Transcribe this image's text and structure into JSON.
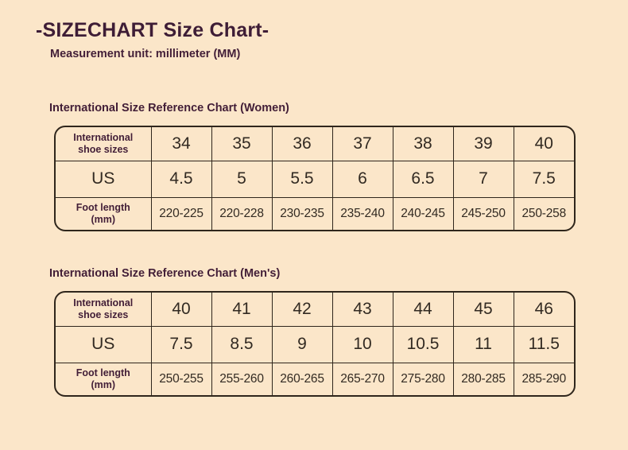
{
  "page": {
    "title": "-SIZECHART Size Chart-",
    "subtitle": "Measurement unit: millimeter (MM)"
  },
  "colors": {
    "background": "#fbe6c9",
    "heading_text": "#421e37",
    "number_text": "#322a22",
    "table_border": "#2f261c"
  },
  "women_table": {
    "heading": "International Size Reference Chart (Women)",
    "row_labels": {
      "international_line1": "International",
      "international_line2": "shoe sizes",
      "us": "US",
      "foot_line1": "Foot length",
      "foot_line2": "(mm)"
    },
    "sizes": [
      "34",
      "35",
      "36",
      "37",
      "38",
      "39",
      "40"
    ],
    "us_sizes": [
      "4.5",
      "5",
      "5.5",
      "6",
      "6.5",
      "7",
      "7.5"
    ],
    "foot_length_mm": [
      "220-225",
      "220-228",
      "230-235",
      "235-240",
      "240-245",
      "245-250",
      "250-258"
    ]
  },
  "men_table": {
    "heading": "International Size Reference Chart (Men's)",
    "row_labels": {
      "international_line1": "International",
      "international_line2": "shoe sizes",
      "us": "US",
      "foot_line1": "Foot length",
      "foot_line2": "(mm)"
    },
    "sizes": [
      "40",
      "41",
      "42",
      "43",
      "44",
      "45",
      "46"
    ],
    "us_sizes": [
      "7.5",
      "8.5",
      "9",
      "10",
      "10.5",
      "11",
      "11.5"
    ],
    "foot_length_mm": [
      "250-255",
      "255-260",
      "260-265",
      "265-270",
      "275-280",
      "280-285",
      "285-290"
    ]
  }
}
